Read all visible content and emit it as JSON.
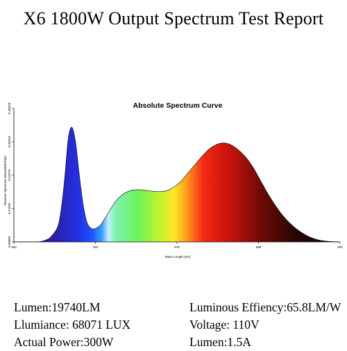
{
  "report": {
    "title": "X6 1800W Output Spectrum Test Report"
  },
  "chart_data": {
    "type": "area",
    "title": "Absolute Spectrum Curve",
    "xlabel": "Wave Length (nm)",
    "ylabel": "Absolute Spectrum Value(W/m²/nm)",
    "xlim": [
      350,
      800
    ],
    "ylim": [
      0,
      0.46558
    ],
    "x_ticks": [
      "350",
      "463",
      "575",
      "688",
      "800"
    ],
    "y_ticks": [
      "0.00000",
      "0.11639",
      "0.23279",
      "0.34918",
      "0.46558"
    ],
    "grid": false,
    "fill": "wavelength-colored (blue → green → red → dark)",
    "series": [
      {
        "x": [
          350,
          380,
          390,
          395,
          400,
          410,
          415,
          420,
          425,
          430,
          435,
          440,
          445,
          450,
          455,
          460,
          465,
          470,
          475,
          480,
          490,
          500,
          510,
          520,
          530,
          540,
          550,
          560,
          570,
          580,
          590,
          600,
          610,
          620,
          630,
          640,
          650,
          660,
          670,
          680,
          690,
          700,
          710,
          720,
          730,
          740,
          750,
          760,
          770,
          780,
          790,
          800
        ],
        "y": [
          0.0,
          0.0,
          0.003,
          0.008,
          0.015,
          0.05,
          0.11,
          0.22,
          0.36,
          0.4,
          0.35,
          0.24,
          0.14,
          0.075,
          0.05,
          0.045,
          0.05,
          0.06,
          0.08,
          0.1,
          0.14,
          0.165,
          0.178,
          0.182,
          0.18,
          0.177,
          0.175,
          0.178,
          0.19,
          0.21,
          0.24,
          0.27,
          0.3,
          0.325,
          0.34,
          0.345,
          0.338,
          0.32,
          0.295,
          0.26,
          0.215,
          0.17,
          0.13,
          0.095,
          0.067,
          0.045,
          0.028,
          0.015,
          0.007,
          0.003,
          0.001,
          0.0
        ]
      }
    ]
  },
  "specs": {
    "lumen": "Lumen:19740LM",
    "illuminance": "Llumiance: 68071 LUX",
    "actual_power": "Actual Power:300W",
    "efficiency": "Luminous Effiency:65.8LM/W",
    "voltage": "Voltage: 110V",
    "current": "Lumen:1.5A"
  }
}
